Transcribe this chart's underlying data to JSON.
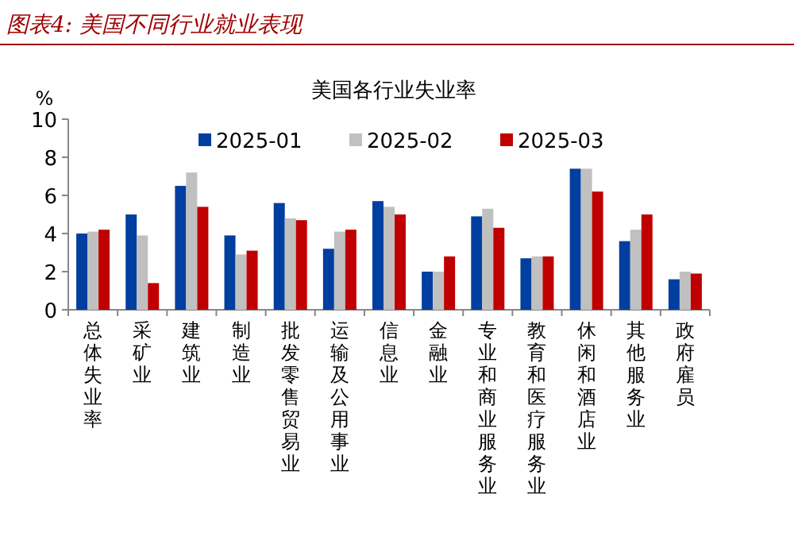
{
  "chart_data": {
    "type": "bar",
    "title": "图表4: 美国不同行业就业表现",
    "subtitle": "美国各行业失业率",
    "ylabel": "%",
    "categories": [
      "总体失业率",
      "采矿业",
      "建筑业",
      "制造业",
      "批发零售贸易业",
      "运输及公用事业",
      "信息业",
      "金融业",
      "专业和商业服务业",
      "教育和医疗服务业",
      "休闲和酒店业",
      "其他服务业",
      "政府雇员"
    ],
    "series": [
      {
        "name": "2025-01",
        "color": "#003f9f",
        "values": [
          4.0,
          5.0,
          6.5,
          3.9,
          5.6,
          3.2,
          5.7,
          2.0,
          4.9,
          2.7,
          7.4,
          3.6,
          1.6
        ]
      },
      {
        "name": "2025-02",
        "color": "#c0c0c0",
        "values": [
          4.1,
          3.9,
          7.2,
          2.9,
          4.8,
          4.1,
          5.4,
          2.0,
          5.3,
          2.8,
          7.4,
          4.2,
          2.0
        ]
      },
      {
        "name": "2025-03",
        "color": "#c00000",
        "values": [
          4.2,
          1.4,
          5.4,
          3.1,
          4.7,
          4.2,
          5.0,
          2.8,
          4.3,
          2.8,
          6.2,
          5.0,
          1.9
        ]
      }
    ],
    "ylim": [
      0,
      10
    ],
    "yticks": [
      0,
      2,
      4,
      6,
      8,
      10
    ],
    "legend": "top",
    "grid": false
  }
}
